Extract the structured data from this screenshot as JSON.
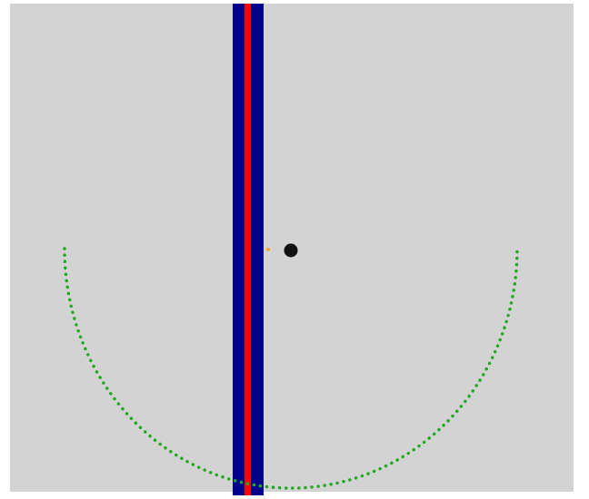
{
  "scene": {
    "background_color": "#d3d3d3",
    "page_color": "#ffffff",
    "wall_outer_color": "#00008b",
    "wall_core_color": "#ff0000",
    "agent_color": "#111111",
    "target_color": "#f5a623",
    "arc_color": "#22aa22"
  }
}
